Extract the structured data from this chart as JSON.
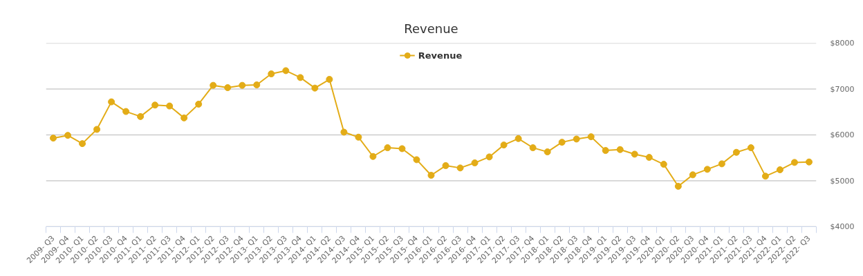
{
  "chart_data": {
    "type": "line",
    "title": "Revenue",
    "categories": [
      "2009- Q3",
      "2009- Q4",
      "2010- Q1",
      "2010- Q2",
      "2010- Q3",
      "2010- Q4",
      "2011- Q1",
      "2011- Q2",
      "2011- Q3",
      "2011- Q4",
      "2012- Q1",
      "2012- Q2",
      "2012- Q3",
      "2012- Q4",
      "2013- Q1",
      "2013- Q2",
      "2013- Q3",
      "2013- Q4",
      "2014- Q1",
      "2014- Q2",
      "2014- Q3",
      "2014- Q4",
      "2015- Q1",
      "2015- Q2",
      "2015- Q3",
      "2015- Q4",
      "2016- Q1",
      "2016- Q2",
      "2016- Q3",
      "2016- Q4",
      "2017- Q1",
      "2017- Q2",
      "2017- Q3",
      "2017- Q4",
      "2018- Q1",
      "2018- Q2",
      "2018- Q3",
      "2018- Q4",
      "2019- Q1",
      "2019- Q2",
      "2019- Q3",
      "2019- Q4",
      "2020- Q1",
      "2020- Q2",
      "2020- Q3",
      "2020- Q4",
      "2021- Q1",
      "2021- Q2",
      "2021- Q3",
      "2021- Q4",
      "2022- Q1",
      "2022- Q2",
      "2022- Q3"
    ],
    "series": [
      {
        "name": "Revenue",
        "color": "#e3ac17",
        "values": [
          5930,
          5990,
          5810,
          6120,
          6720,
          6510,
          6400,
          6650,
          6630,
          6370,
          6670,
          7080,
          7030,
          7080,
          7090,
          7330,
          7400,
          7250,
          7020,
          7210,
          6060,
          5950,
          5530,
          5720,
          5700,
          5460,
          5120,
          5330,
          5280,
          5390,
          5520,
          5780,
          5920,
          5720,
          5630,
          5840,
          5910,
          5960,
          5660,
          5680,
          5580,
          5510,
          5360,
          4880,
          5130,
          5250,
          5370,
          5620,
          5720,
          5100,
          5240,
          5400,
          5410
        ]
      }
    ],
    "ylim": [
      4000,
      8000
    ],
    "yticks": [
      {
        "value": 4000,
        "label": "$4000"
      },
      {
        "value": 5000,
        "label": "$5000"
      },
      {
        "value": 6000,
        "label": "$6000"
      },
      {
        "value": 7000,
        "label": "$7000"
      },
      {
        "value": 8000,
        "label": "$8000"
      }
    ],
    "grid": "y",
    "legend": "top",
    "marker": "circle",
    "line_style": "solid"
  }
}
